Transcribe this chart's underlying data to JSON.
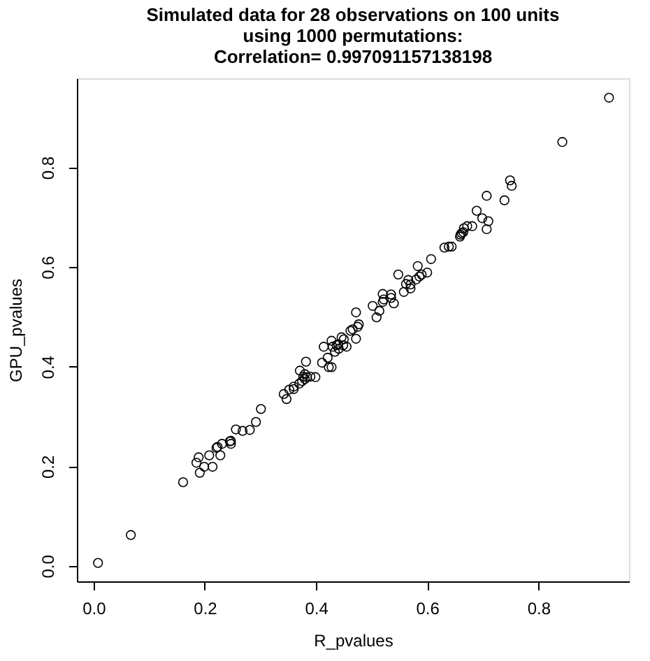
{
  "chart_data": {
    "type": "scatter",
    "title": "Simulated data for 28 observations on 100 units\nusing 1000 permutations:\nCorrelation= 0.997091157138198",
    "xlabel": "R_pvalues",
    "ylabel": "GPU_pvalues",
    "x": [
      0.008,
      0.067,
      0.161,
      0.185,
      0.189,
      0.191,
      0.199,
      0.208,
      0.214,
      0.221,
      0.223,
      0.228,
      0.231,
      0.247,
      0.247,
      0.256,
      0.268,
      0.281,
      0.292,
      0.301,
      0.342,
      0.347,
      0.352,
      0.36,
      0.37,
      0.371,
      0.375,
      0.377,
      0.382,
      0.384,
      0.399,
      0.411,
      0.414,
      0.421,
      0.423,
      0.428,
      0.428,
      0.434,
      0.441,
      0.446,
      0.449,
      0.437,
      0.462,
      0.466,
      0.472,
      0.472,
      0.477,
      0.502,
      0.509,
      0.514,
      0.52,
      0.522,
      0.535,
      0.54,
      0.548,
      0.558,
      0.562,
      0.566,
      0.57,
      0.583,
      0.586,
      0.6,
      0.607,
      0.631,
      0.639,
      0.644,
      0.659,
      0.662,
      0.666,
      0.672,
      0.681,
      0.689,
      0.699,
      0.707,
      0.71,
      0.707,
      0.739,
      0.749,
      0.752,
      0.843,
      0.927,
      0.38,
      0.44,
      0.58,
      0.45,
      0.57,
      0.665,
      0.52,
      0.39,
      0.43,
      0.36,
      0.455,
      0.66,
      0.59,
      0.245,
      0.475,
      0.535,
      0.38
    ],
    "values": [
      0.006,
      0.062,
      0.168,
      0.207,
      0.218,
      0.187,
      0.199,
      0.222,
      0.199,
      0.237,
      0.239,
      0.222,
      0.245,
      0.251,
      0.245,
      0.274,
      0.271,
      0.273,
      0.289,
      0.315,
      0.345,
      0.335,
      0.354,
      0.355,
      0.366,
      0.392,
      0.371,
      0.38,
      0.41,
      0.379,
      0.379,
      0.408,
      0.44,
      0.418,
      0.399,
      0.452,
      0.399,
      0.43,
      0.436,
      0.459,
      0.443,
      0.443,
      0.472,
      0.475,
      0.509,
      0.456,
      0.485,
      0.522,
      0.499,
      0.512,
      0.546,
      0.535,
      0.538,
      0.527,
      0.585,
      0.55,
      0.566,
      0.574,
      0.557,
      0.602,
      0.581,
      0.589,
      0.616,
      0.639,
      0.641,
      0.641,
      0.661,
      0.668,
      0.678,
      0.682,
      0.682,
      0.713,
      0.698,
      0.676,
      0.692,
      0.743,
      0.734,
      0.774,
      0.763,
      0.851,
      0.94,
      0.385,
      0.445,
      0.575,
      0.455,
      0.565,
      0.67,
      0.53,
      0.38,
      0.44,
      0.36,
      0.44,
      0.665,
      0.585,
      0.25,
      0.48,
      0.545,
      0.375
    ],
    "color": "#000000",
    "marker": "circle",
    "grid": false,
    "xlim": [
      -0.03,
      0.963
    ],
    "ylim": [
      -0.031,
      0.979
    ],
    "xticks": [
      {
        "value": 0,
        "label": "0.0"
      },
      0.2,
      0.4,
      0.6,
      0.8
    ],
    "yticks": [
      {
        "value": 0,
        "label": "0.0"
      },
      0.2,
      0.4,
      0.6,
      0.8
    ]
  }
}
